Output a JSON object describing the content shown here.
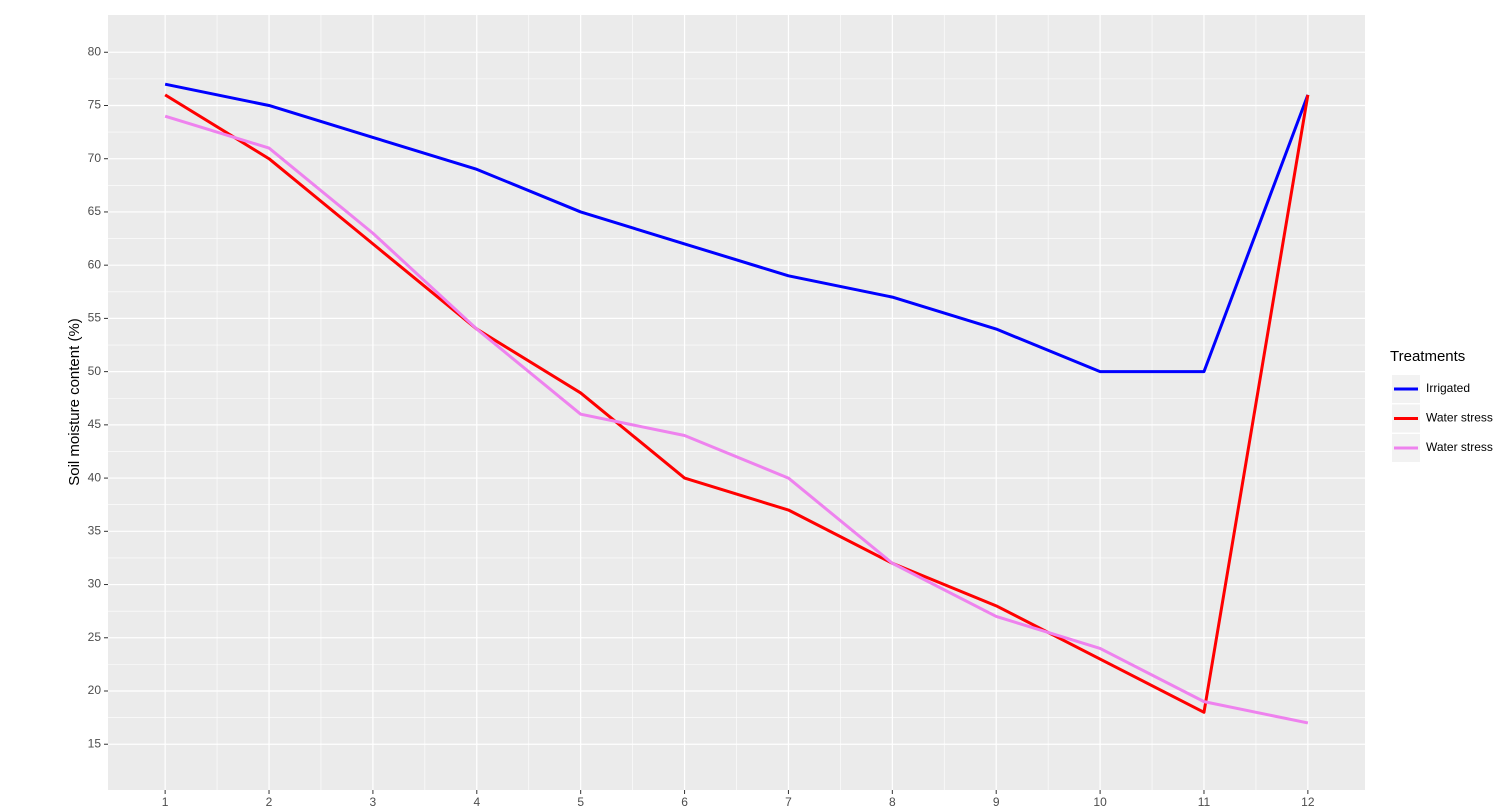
{
  "chart_data": {
    "type": "line",
    "y_label": "Soil moisture content (%)",
    "x": [
      1,
      2,
      3,
      4,
      5,
      6,
      7,
      8,
      9,
      10,
      11,
      12
    ],
    "series": [
      {
        "name": "Irrigated",
        "color": "#0000ff",
        "values": [
          77,
          75,
          72,
          69,
          65,
          62,
          59,
          57,
          54,
          50,
          50,
          76
        ]
      },
      {
        "name": "Water stress",
        "color": "#ff0000",
        "values": [
          76,
          70,
          62,
          54,
          48,
          40,
          37,
          32,
          28,
          23,
          18,
          76
        ]
      },
      {
        "name": "Water stress",
        "color": "#ee82ee",
        "values": [
          74,
          71,
          63,
          54,
          46,
          44,
          40,
          32,
          27,
          24,
          19,
          17
        ]
      }
    ],
    "legend_title": "Treatments",
    "legend_position": "right",
    "xlim": [
      0.45,
      12.55
    ],
    "xticks": [
      1,
      2,
      3,
      4,
      5,
      6,
      7,
      8,
      9,
      10,
      11,
      12
    ],
    "ylim": [
      10.7,
      83.5
    ],
    "yticks": [
      15,
      20,
      25,
      30,
      35,
      40,
      45,
      50,
      55,
      60,
      65,
      70,
      75,
      80
    ],
    "grid": true
  }
}
